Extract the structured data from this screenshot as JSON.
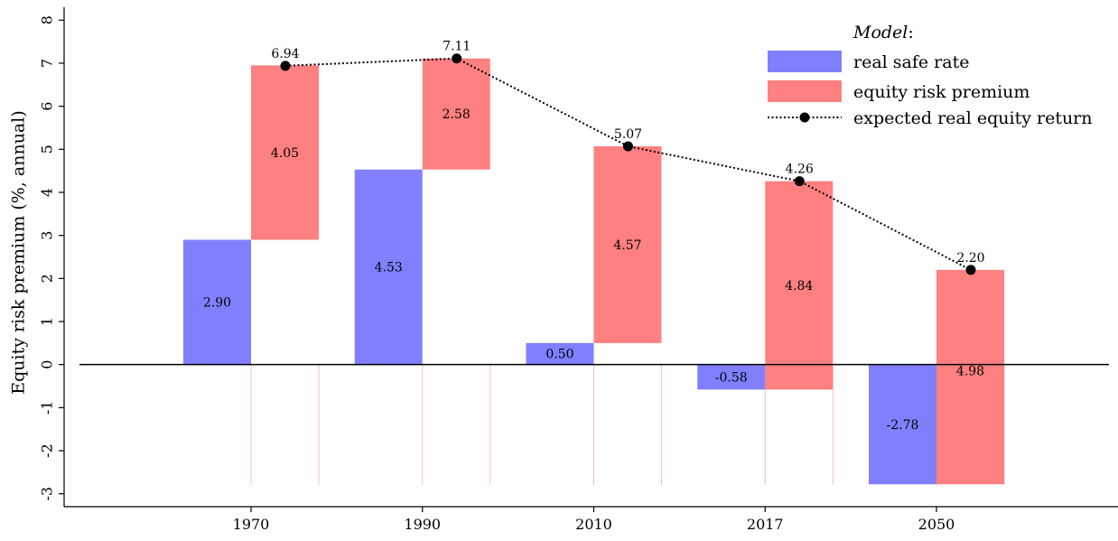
{
  "chart_data": {
    "type": "bar",
    "title": "",
    "xlabel": "",
    "ylabel": "Equity risk premium (%, annual)",
    "ylim": [
      -3.3,
      8.3
    ],
    "yticks": [
      -3,
      -2,
      -1,
      0,
      1,
      2,
      3,
      4,
      5,
      6,
      7,
      8
    ],
    "grid": false,
    "legend_position": "top-right",
    "categories": [
      "1970",
      "1990",
      "2010",
      "2017",
      "2050"
    ],
    "series": [
      {
        "name": "real safe rate",
        "type": "bar",
        "color": "#8080ff",
        "values": [
          2.9,
          4.53,
          0.5,
          -0.58,
          -2.78
        ],
        "labels": [
          "2.90",
          "4.53",
          "0.50",
          "-0.58",
          "-2.78"
        ]
      },
      {
        "name": "equity risk premium",
        "type": "bar",
        "color": "#ff8080",
        "values": [
          4.05,
          2.58,
          4.57,
          4.84,
          4.98
        ],
        "labels": [
          "4.05",
          "2.58",
          "4.57",
          "4.84",
          "4.98"
        ]
      },
      {
        "name": "expected real equity return",
        "type": "line",
        "color": "#000000",
        "values": [
          6.94,
          7.11,
          5.07,
          4.26,
          2.2
        ],
        "labels": [
          "6.94",
          "7.11",
          "5.07",
          "4.26",
          "2.20"
        ]
      }
    ],
    "equity_bar_bottoms": [
      2.9,
      4.53,
      0.5,
      -0.58,
      -2.78
    ],
    "lower_whisker": -2.8,
    "legend_title": "Model",
    "legend_title_suffix": ":"
  }
}
